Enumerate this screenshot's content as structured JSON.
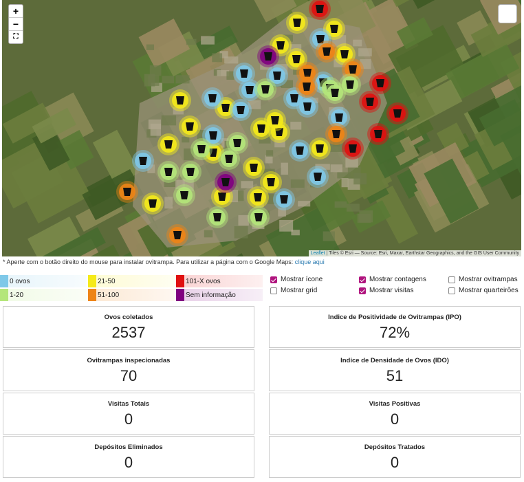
{
  "map": {
    "zoom_in": "+",
    "zoom_out": "−",
    "attribution": {
      "link": "Leaflet",
      "text": "| Tiles © Esri — Source: Esri, Maxar, Earthstar Geographics, and the GIS User Community"
    }
  },
  "note": {
    "text": "* Aperte com o botão direito do mouse para instalar ovitrampa. Para utilizar a página com o Google Maps:",
    "link": "clique aqui"
  },
  "legend": [
    {
      "label": "0 ovos",
      "color": "#7ec8e8"
    },
    {
      "label": "1-20",
      "color": "#b4e67a"
    },
    {
      "label": "21-50",
      "color": "#f5ea1a"
    },
    {
      "label": "51-100",
      "color": "#ee8416"
    },
    {
      "label": "101-X ovos",
      "color": "#e01010"
    },
    {
      "label": "Sem informação",
      "color": "#800080"
    }
  ],
  "options": [
    {
      "label": "Mostrar ícone",
      "checked": true
    },
    {
      "label": "Mostrar contagens",
      "checked": true
    },
    {
      "label": "Mostrar ovitrampas",
      "checked": false
    },
    {
      "label": "Mostrar grid",
      "checked": false
    },
    {
      "label": "Mostrar visitas",
      "checked": true
    },
    {
      "label": "Mostrar quarteirões",
      "checked": false
    }
  ],
  "stats": [
    {
      "title": "Ovos coletados",
      "value": "2537"
    },
    {
      "title": "Indice de Positividade de Ovitrampas (IPO)",
      "value": "72%"
    },
    {
      "title": "Ovitrampas inspecionadas",
      "value": "70"
    },
    {
      "title": "Indice de Densidade de Ovos (IDO)",
      "value": "51"
    },
    {
      "title": "Visitas Totais",
      "value": "0"
    },
    {
      "title": "Visitas Positivas",
      "value": "0"
    },
    {
      "title": "Depósitos Eliminados",
      "value": "0"
    },
    {
      "title": "Depósitos Tratados",
      "value": "0"
    }
  ]
}
